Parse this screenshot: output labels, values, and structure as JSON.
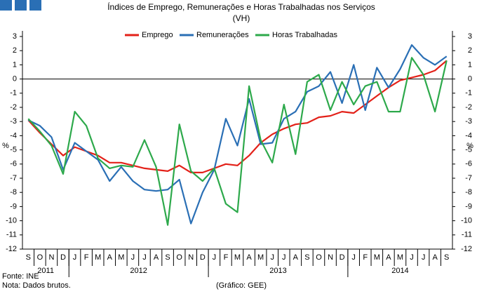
{
  "chart_data": {
    "type": "line",
    "title": "Índices de Emprego, Remunerações e Horas Trabalhadas nos Serviços",
    "subtitle": "(VH)",
    "ylabel": "%",
    "y2label": "%",
    "categories": [
      "S",
      "O",
      "N",
      "D",
      "J",
      "F",
      "M",
      "A",
      "M",
      "J",
      "J",
      "A",
      "S",
      "O",
      "N",
      "D",
      "J",
      "F",
      "M",
      "A",
      "M",
      "J",
      "J",
      "A",
      "S",
      "O",
      "N",
      "D",
      "J",
      "F",
      "M",
      "A",
      "M",
      "J",
      "J",
      "A",
      "S"
    ],
    "x_groups": [
      "2011",
      "2012",
      "2013",
      "2014"
    ],
    "series": [
      {
        "name": "Emprego",
        "color": "#e32119",
        "values": [
          -2.9,
          -3.8,
          -4.6,
          -5.4,
          -4.8,
          -5.1,
          -5.4,
          -5.9,
          -5.9,
          -6.1,
          -6.3,
          -6.4,
          -6.5,
          -6.1,
          -6.6,
          -6.6,
          -6.3,
          -6.0,
          -6.1,
          -5.4,
          -4.5,
          -3.9,
          -3.5,
          -3.2,
          -3.1,
          -2.7,
          -2.6,
          -2.3,
          -2.4,
          -1.8,
          -1.2,
          -0.6,
          -0.1,
          0.1,
          0.3,
          0.6,
          1.3
        ]
      },
      {
        "name": "Remunerações",
        "color": "#2a6fb5",
        "values": [
          -2.9,
          -3.3,
          -4.1,
          -6.4,
          -4.5,
          -5.1,
          -5.7,
          -7.2,
          -6.2,
          -7.2,
          -7.8,
          -7.9,
          -7.8,
          -7.1,
          -10.2,
          -8.0,
          -6.4,
          -2.8,
          -4.7,
          -1.4,
          -4.6,
          -4.5,
          -2.8,
          -2.3,
          -0.9,
          -0.5,
          0.5,
          -1.7,
          1.0,
          -2.2,
          0.8,
          -0.6,
          0.7,
          2.4,
          1.5,
          1.0,
          1.6
        ]
      },
      {
        "name": "Horas Trabalhadas",
        "color": "#2da94b",
        "values": [
          -2.8,
          -3.7,
          -4.7,
          -6.7,
          -2.3,
          -3.3,
          -5.6,
          -6.3,
          -6.1,
          -6.2,
          -4.3,
          -6.2,
          -10.3,
          -3.2,
          -6.5,
          -7.2,
          -6.3,
          -8.8,
          -9.4,
          -0.5,
          -4.3,
          -5.9,
          -1.8,
          -5.3,
          -0.2,
          0.3,
          -2.2,
          -0.2,
          -1.8,
          -0.5,
          -0.2,
          -2.3,
          -2.3,
          1.5,
          0.3,
          -2.3,
          1.3
        ]
      }
    ],
    "ylim": [
      -12,
      3
    ],
    "yticks": [
      -12,
      -11,
      -10,
      -9,
      -8,
      -7,
      -6,
      -5,
      -4,
      -3,
      -2,
      -1,
      0,
      1,
      2,
      3
    ],
    "y2lim": [
      -12,
      3
    ],
    "y2ticks": [
      -12,
      -11,
      -10,
      -9,
      -8,
      -7,
      -6,
      -5,
      -4,
      -3,
      -2,
      -1,
      0,
      1,
      2,
      3
    ],
    "legend": "top",
    "source": "Fonte: INE",
    "note": "Nota: Dados brutos.",
    "credit": "(Gráfico: GEE)"
  }
}
